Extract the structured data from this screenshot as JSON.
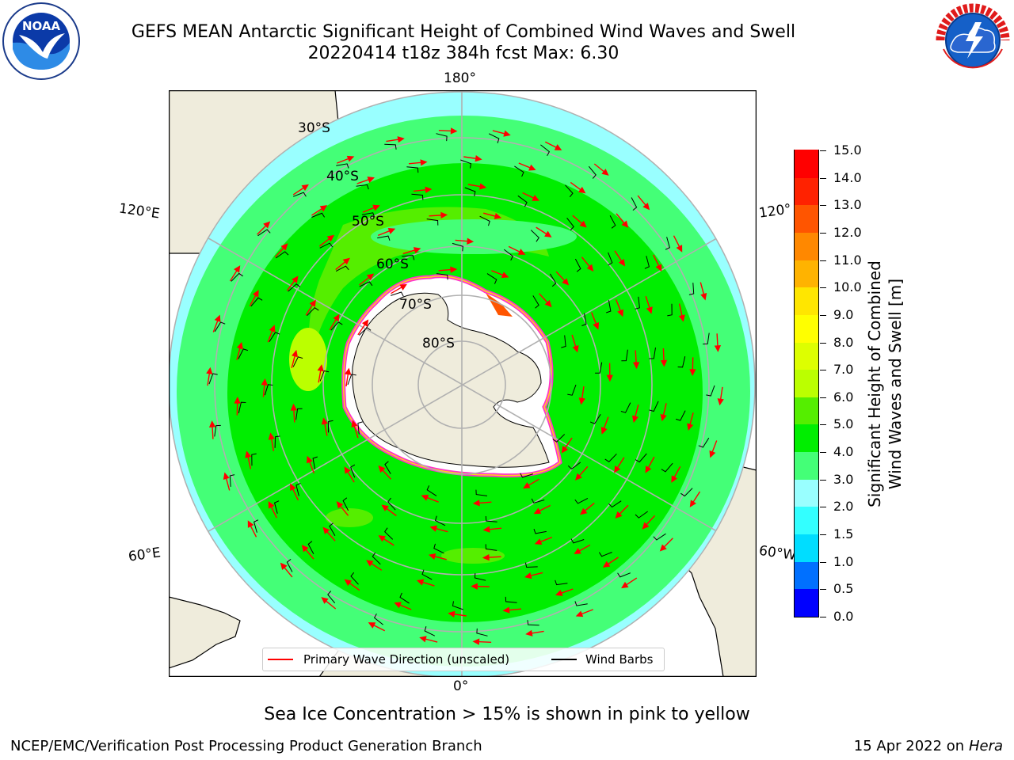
{
  "header": {
    "title_line1": "GEFS MEAN Antarctic Significant Height of Combined Wind Waves and Swell",
    "title_line2": "20220414 t18z 384h fcst   Max: 6.30"
  },
  "logos": {
    "left": {
      "name": "NOAA",
      "ring_text": "NATIONAL OCEANIC AND ATMOSPHERIC ADMINISTRATION",
      "bottom_text": "U.S. DEPARTMENT OF COMMERCE"
    },
    "right": {
      "name": "NATIONAL WEATHER SERVICE"
    }
  },
  "map": {
    "projection": "south polar stereographic",
    "lon_labels": {
      "top": "180°",
      "bottom": "0°",
      "upper_left": "120°E",
      "upper_right": "120°",
      "lower_left": "60°E",
      "lower_right": "60°W"
    },
    "lat_labels": [
      "30°S",
      "40°S",
      "50°S",
      "60°S",
      "70°S",
      "80°S"
    ],
    "land_color": "#efecdc",
    "colors": {
      "wave_direction_arrow": "#ff0000",
      "wind_barb": "#000000",
      "sea_ice": "#ff33cc"
    }
  },
  "colorbar": {
    "label_line1": "Significant Height of Combined",
    "label_line2": "Wind Waves and Swell [m]",
    "ticks": [
      "0.0",
      "0.5",
      "1.0",
      "1.5",
      "2.0",
      "3.0",
      "4.0",
      "5.0",
      "6.0",
      "7.0",
      "8.0",
      "9.0",
      "10.0",
      "11.0",
      "12.0",
      "13.0",
      "14.0",
      "15.0"
    ],
    "colors": [
      "#0000ff",
      "#0070ff",
      "#00ddff",
      "#33ffff",
      "#99ffff",
      "#44ff77",
      "#00ee00",
      "#55ee00",
      "#bbff00",
      "#ddff00",
      "#ffff00",
      "#ffe600",
      "#ffb300",
      "#ff8800",
      "#ff5500",
      "#ff2200",
      "#ff0000"
    ]
  },
  "legend": {
    "wave_label": "Primary Wave Direction (unscaled)",
    "wind_label": "Wind Barbs"
  },
  "notes": {
    "sea_ice": "Sea Ice Concentration > 15% is shown in pink to yellow"
  },
  "footer": {
    "left": "NCEP/EMC/Verification Post Processing Product Generation Branch",
    "date": "15 Apr 2022 on ",
    "machine": "Hera"
  }
}
